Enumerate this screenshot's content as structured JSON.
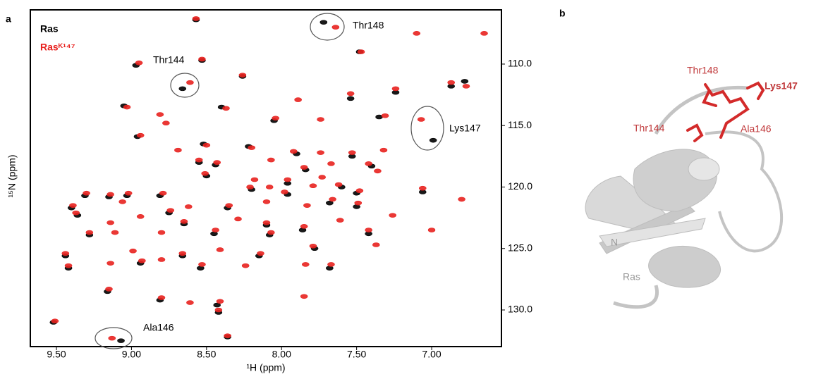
{
  "chart_data": {
    "type": "scatter",
    "panel_label": "a",
    "xlabel": "¹H (ppm)",
    "ylabel": "¹⁵N (ppm)",
    "xlim": [
      9.674,
      6.535
    ],
    "ylim": [
      105.59,
      132.98
    ],
    "xticks": [
      {
        "value": 9.5,
        "label": "9.50"
      },
      {
        "value": 9.0,
        "label": "9.00"
      },
      {
        "value": 8.5,
        "label": "8.50"
      },
      {
        "value": 8.0,
        "label": "8.00"
      },
      {
        "value": 7.5,
        "label": "7.50"
      },
      {
        "value": 7.0,
        "label": "7.00"
      }
    ],
    "yticks": [
      {
        "value": 110,
        "label": "110.0"
      },
      {
        "value": 115,
        "label": "115.0"
      },
      {
        "value": 120,
        "label": "120.0"
      },
      {
        "value": 125,
        "label": "125.0"
      },
      {
        "value": 130,
        "label": "130.0"
      }
    ],
    "annotations": [
      "Thr148",
      "Thr144",
      "Lys147",
      "Ala146"
    ],
    "series": [
      {
        "name": "Ras",
        "color": "#000000",
        "x": [
          8.57,
          7.72,
          7.48,
          8.53,
          8.97,
          8.26,
          8.66,
          7.24,
          7.54,
          6.87,
          6.78,
          9.05,
          8.4,
          8.05,
          7.35,
          6.99,
          8.96,
          8.52,
          8.22,
          7.9,
          7.53,
          8.55,
          8.44,
          7.84,
          7.4,
          8.5,
          7.96,
          7.6,
          9.31,
          9.15,
          9.03,
          8.81,
          8.2,
          7.96,
          7.5,
          7.06,
          9.4,
          8.75,
          8.36,
          7.68,
          7.5,
          9.36,
          8.65,
          8.1,
          7.86,
          9.28,
          8.45,
          8.08,
          7.42,
          9.44,
          8.66,
          8.15,
          7.78,
          9.42,
          8.94,
          8.54,
          7.68,
          9.16,
          8.81,
          8.43,
          8.42,
          9.52,
          8.36,
          9.07
        ],
        "values": [
          106.4,
          106.6,
          109.0,
          109.7,
          110.1,
          111.0,
          112.0,
          112.3,
          112.8,
          111.8,
          111.4,
          113.4,
          113.5,
          114.6,
          114.3,
          116.2,
          115.9,
          116.5,
          116.7,
          117.3,
          117.5,
          118.0,
          118.2,
          118.6,
          118.3,
          119.1,
          119.7,
          120.0,
          120.7,
          120.8,
          120.7,
          120.7,
          120.2,
          120.6,
          120.5,
          120.4,
          121.7,
          122.1,
          121.7,
          121.3,
          121.6,
          122.3,
          123.0,
          123.1,
          123.5,
          123.9,
          123.8,
          123.9,
          123.8,
          125.6,
          125.6,
          125.6,
          125.0,
          126.6,
          126.2,
          126.6,
          126.6,
          128.5,
          129.2,
          129.6,
          130.2,
          131.0,
          132.2,
          132.5
        ]
      },
      {
        "name": "Rasᴷ¹⁴⁷",
        "color": "#e8221f",
        "x": [
          8.57,
          7.64,
          7.1,
          6.65,
          7.47,
          8.53,
          8.95,
          8.26,
          8.61,
          7.24,
          7.89,
          7.54,
          6.87,
          6.77,
          9.03,
          8.81,
          8.77,
          8.37,
          8.04,
          7.74,
          7.31,
          7.07,
          8.94,
          8.5,
          8.2,
          7.92,
          7.74,
          7.53,
          7.32,
          8.69,
          8.55,
          8.43,
          8.07,
          7.85,
          7.67,
          7.42,
          8.51,
          8.18,
          7.96,
          7.73,
          7.62,
          7.36,
          9.3,
          9.14,
          9.02,
          8.79,
          8.21,
          8.08,
          7.98,
          7.79,
          7.48,
          7.06,
          6.8,
          9.39,
          9.06,
          8.74,
          8.62,
          8.35,
          8.1,
          7.83,
          7.66,
          7.49,
          9.37,
          9.14,
          8.94,
          8.65,
          8.29,
          8.1,
          7.85,
          7.61,
          7.26,
          9.28,
          9.11,
          8.8,
          8.44,
          8.07,
          7.42,
          7.0,
          9.44,
          8.99,
          8.66,
          8.41,
          8.14,
          7.79,
          7.37,
          9.42,
          9.14,
          8.93,
          8.8,
          8.53,
          8.24,
          7.67,
          7.84,
          9.15,
          8.8,
          8.61,
          8.41,
          8.42,
          7.85,
          9.51,
          8.36,
          9.13
        ],
        "values": [
          106.3,
          107.0,
          107.5,
          107.5,
          109.0,
          109.6,
          109.9,
          110.9,
          111.5,
          112.0,
          112.9,
          112.4,
          111.5,
          111.8,
          113.5,
          114.1,
          114.8,
          113.6,
          114.4,
          114.5,
          114.2,
          114.5,
          115.8,
          116.6,
          116.8,
          117.1,
          117.2,
          117.2,
          117.0,
          117.0,
          117.8,
          118.0,
          117.8,
          118.4,
          118.1,
          118.1,
          118.9,
          119.4,
          119.4,
          119.2,
          119.8,
          118.7,
          120.5,
          120.6,
          120.5,
          120.5,
          120.0,
          120.0,
          120.4,
          119.9,
          120.3,
          120.1,
          121.0,
          121.5,
          121.2,
          121.9,
          121.6,
          121.5,
          121.2,
          121.5,
          121.0,
          121.3,
          122.1,
          122.9,
          122.4,
          122.8,
          122.6,
          122.9,
          123.2,
          122.7,
          122.3,
          123.7,
          123.7,
          123.7,
          123.5,
          123.7,
          123.5,
          123.5,
          125.4,
          125.2,
          125.4,
          125.1,
          125.4,
          124.8,
          124.7,
          126.4,
          126.2,
          126.0,
          125.9,
          126.3,
          126.4,
          126.3,
          126.3,
          128.3,
          129.0,
          129.4,
          129.3,
          130.0,
          128.9,
          130.9,
          132.1,
          132.3
        ]
      }
    ]
  },
  "structure": {
    "panel_label": "b",
    "labels": [
      "Thr148",
      "Lys147",
      "Thr144",
      "Ala146"
    ],
    "chain_label": "N",
    "protein_label": "Ras"
  }
}
